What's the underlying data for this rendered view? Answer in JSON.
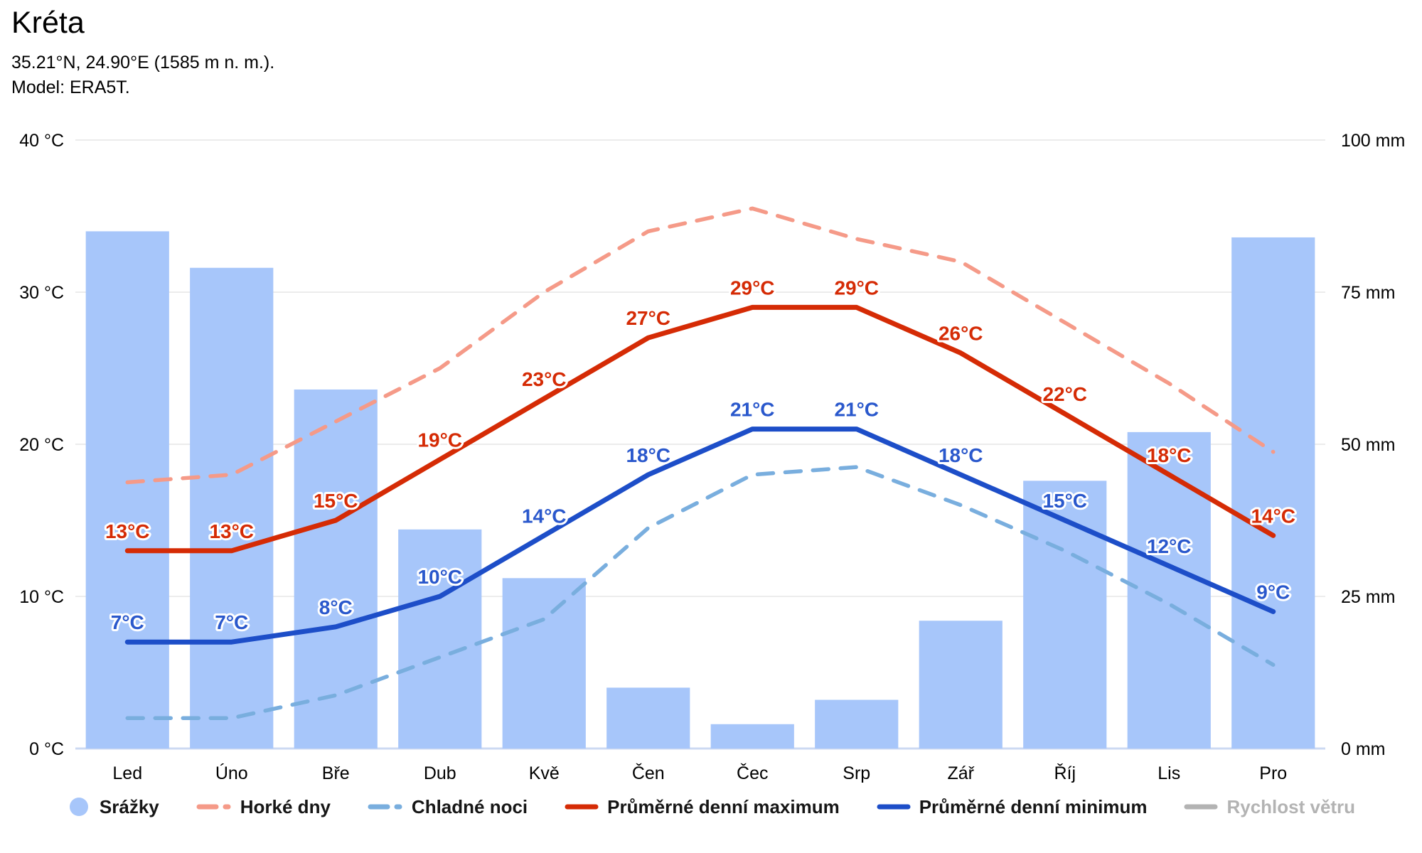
{
  "header": {
    "title": "Kréta",
    "subtitle": "35.21°N, 24.90°E (1585 m n. m.).",
    "model_line": "Model: ERA5T."
  },
  "chart_data": {
    "type": "bar+line climate chart",
    "grid": "horizontal gridlines on",
    "legend_position": "bottom",
    "categories": [
      "Led",
      "Úno",
      "Bře",
      "Dub",
      "Kvě",
      "Čen",
      "Čec",
      "Srp",
      "Zář",
      "Říj",
      "Lis",
      "Pro"
    ],
    "temp_axis": {
      "side": "left",
      "min": 0,
      "max": 40,
      "tick_labels": [
        "0 °C",
        "10 °C",
        "20 °C",
        "30 °C",
        "40 °C"
      ],
      "tick_values": [
        0,
        10,
        20,
        30,
        40
      ]
    },
    "precip_axis": {
      "side": "right",
      "min": 0,
      "max": 100,
      "tick_labels": [
        "0 mm",
        "25 mm",
        "50 mm",
        "75 mm",
        "100 mm"
      ],
      "tick_values": [
        0,
        25,
        50,
        75,
        100
      ]
    },
    "series": [
      {
        "name": "Srážky",
        "type": "bar",
        "axis": "precip",
        "color": "#a7c6fa",
        "values": [
          85,
          79,
          59,
          36,
          28,
          10,
          4,
          8,
          21,
          44,
          52,
          84
        ]
      },
      {
        "name": "Horké dny",
        "type": "dashed-line",
        "axis": "temp",
        "color": "#f59a88",
        "values": [
          17.5,
          18,
          21.5,
          25,
          30,
          34,
          35.5,
          33.5,
          32,
          28,
          24,
          19.5
        ]
      },
      {
        "name": "Chladné noci",
        "type": "dashed-line",
        "axis": "temp",
        "color": "#79aede",
        "values": [
          2,
          2,
          3.5,
          6,
          8.5,
          14.5,
          18,
          18.5,
          16,
          13,
          9.5,
          5.5
        ]
      },
      {
        "name": "Průměrné denní maximum",
        "type": "line",
        "axis": "temp",
        "color": "#d52b05",
        "label_color": "#d52b05",
        "values": [
          13,
          13,
          15,
          19,
          23,
          27,
          29,
          29,
          26,
          22,
          18,
          14
        ],
        "labels": [
          "13°C",
          "13°C",
          "15°C",
          "19°C",
          "23°C",
          "27°C",
          "29°C",
          "29°C",
          "26°C",
          "22°C",
          "18°C",
          "14°C"
        ]
      },
      {
        "name": "Průměrné denní minimum",
        "type": "line",
        "axis": "temp",
        "color": "#1d4ec8",
        "label_color": "#2a58cc",
        "values": [
          7,
          7,
          8,
          10,
          14,
          18,
          21,
          21,
          18,
          15,
          12,
          9
        ],
        "labels": [
          "7°C",
          "7°C",
          "8°C",
          "10°C",
          "14°C",
          "18°C",
          "21°C",
          "21°C",
          "18°C",
          "15°C",
          "12°C",
          "9°C"
        ]
      },
      {
        "name": "Rychlost větru",
        "type": "line",
        "axis": "",
        "color": "#b3b3b3",
        "disabled": true,
        "values": []
      }
    ],
    "style": {
      "gridline_color": "#e6e6e6",
      "baseline_color": "#ccd9f2",
      "bar_color": "#a7c6fa"
    }
  }
}
